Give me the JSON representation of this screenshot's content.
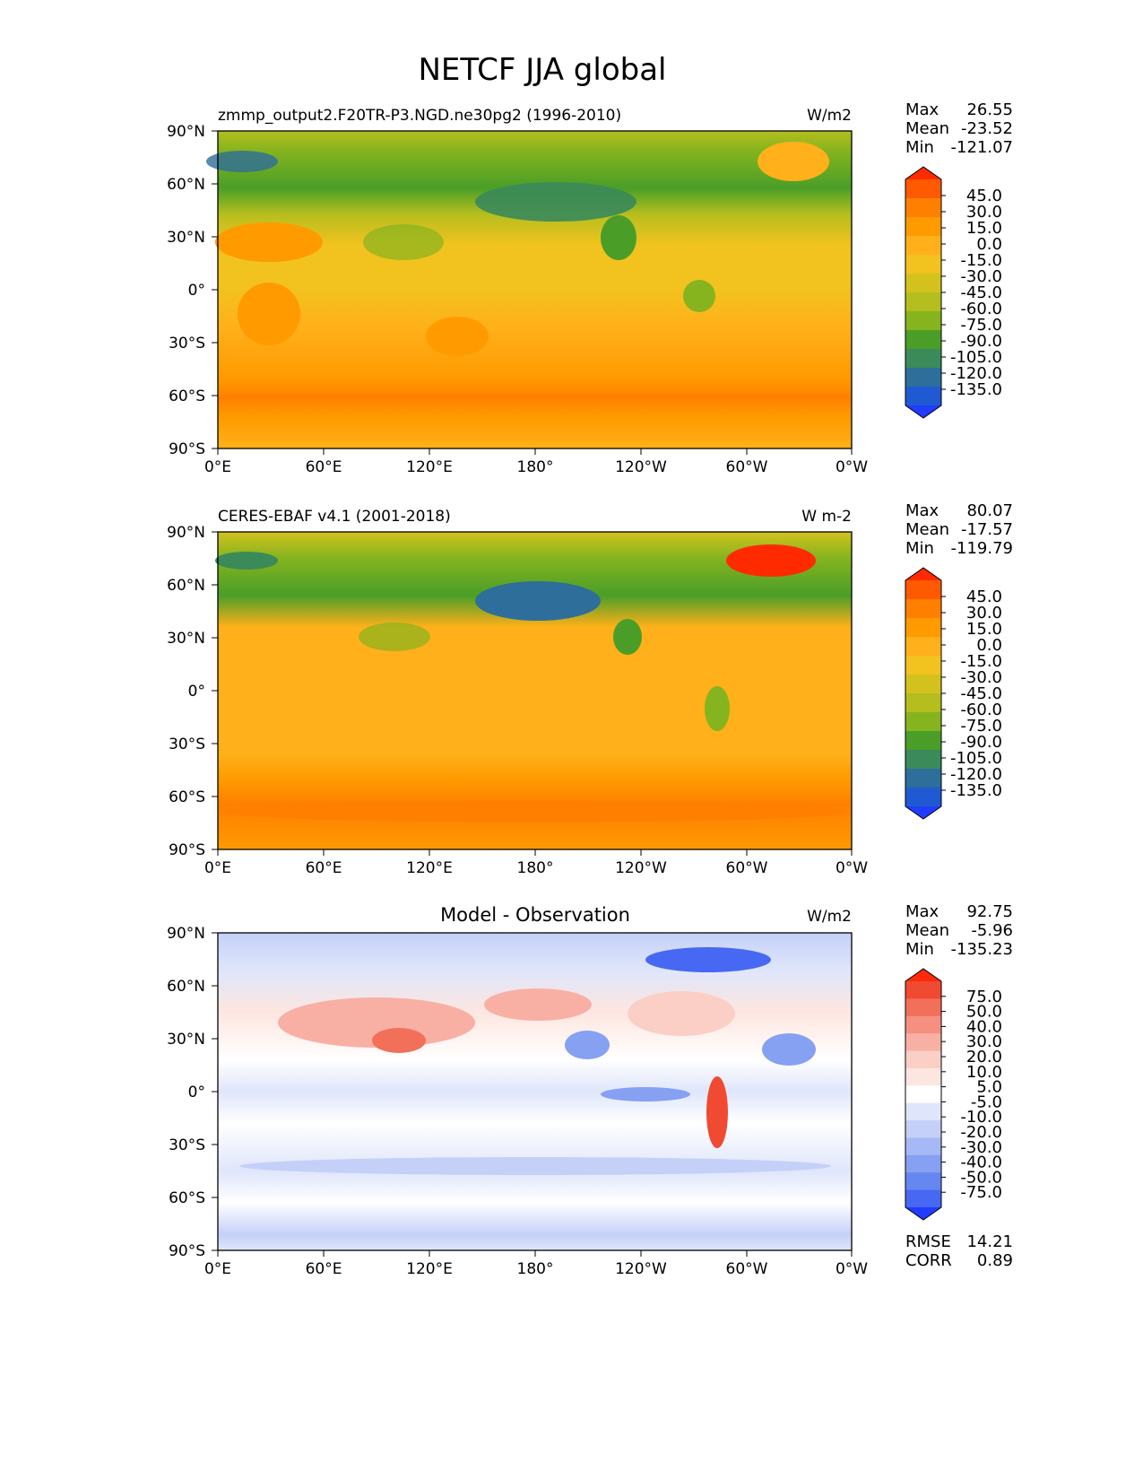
{
  "title": "NETCF JJA global",
  "lat_ticks": [
    "90°N",
    "60°N",
    "30°N",
    "0°",
    "30°S",
    "60°S",
    "90°S"
  ],
  "lon_ticks": [
    "0°E",
    "60°E",
    "120°E",
    "180°",
    "120°W",
    "60°W",
    "0°W"
  ],
  "panels": [
    {
      "id": "model",
      "left_title": "zmmp_output2.F20TR-P3.NGD.ne30pg2 (1996-2010)",
      "center_title": "",
      "units": "W/m2",
      "stats": [
        {
          "label": "Max",
          "value": "26.55"
        },
        {
          "label": "Mean",
          "value": "-23.52"
        },
        {
          "label": "Min",
          "value": "-121.07"
        }
      ],
      "colorbar": {
        "levels": [
          "45.0",
          "30.0",
          "15.0",
          "0.0",
          "-15.0",
          "-30.0",
          "-45.0",
          "-60.0",
          "-75.0",
          "-90.0",
          "-105.0",
          "-120.0",
          "-135.0"
        ],
        "colors": [
          "#ff2a00",
          "#ff5a00",
          "#ff8000",
          "#ff9a00",
          "#ffb01a",
          "#f2c21e",
          "#d3c21e",
          "#b4be1e",
          "#86b41e",
          "#4a9e28",
          "#3a8a5a",
          "#2e6e9a",
          "#1f5ad2",
          "#1f3cff"
        ]
      }
    },
    {
      "id": "obs",
      "left_title": "CERES-EBAF v4.1 (2001-2018)",
      "center_title": "",
      "units": "W m-2",
      "stats": [
        {
          "label": "Max",
          "value": "80.07"
        },
        {
          "label": "Mean",
          "value": "-17.57"
        },
        {
          "label": "Min",
          "value": "-119.79"
        }
      ],
      "colorbar": {
        "levels": [
          "45.0",
          "30.0",
          "15.0",
          "0.0",
          "-15.0",
          "-30.0",
          "-45.0",
          "-60.0",
          "-75.0",
          "-90.0",
          "-105.0",
          "-120.0",
          "-135.0"
        ],
        "colors": [
          "#ff2a00",
          "#ff5a00",
          "#ff8000",
          "#ff9a00",
          "#ffb01a",
          "#f2c21e",
          "#d3c21e",
          "#b4be1e",
          "#86b41e",
          "#4a9e28",
          "#3a8a5a",
          "#2e6e9a",
          "#1f5ad2",
          "#1f3cff"
        ]
      }
    },
    {
      "id": "diff",
      "left_title": "",
      "center_title": "Model - Observation",
      "units": "W/m2",
      "stats": [
        {
          "label": "Max",
          "value": "92.75"
        },
        {
          "label": "Mean",
          "value": "-5.96"
        },
        {
          "label": "Min",
          "value": "-135.23"
        }
      ],
      "extra_stats": [
        {
          "label": "RMSE",
          "value": "14.21"
        },
        {
          "label": "CORR",
          "value": "0.89"
        }
      ],
      "colorbar": {
        "levels": [
          "75.0",
          "50.0",
          "40.0",
          "30.0",
          "20.0",
          "10.0",
          "5.0",
          "-5.0",
          "-10.0",
          "-20.0",
          "-30.0",
          "-40.0",
          "-50.0",
          "-75.0"
        ],
        "colors": [
          "#ff2a0a",
          "#f04a32",
          "#f2705a",
          "#f59080",
          "#f8b0a4",
          "#fbcfc6",
          "#fde6e0",
          "#ffffff",
          "#dfe6fb",
          "#c4d0f8",
          "#a6b8f5",
          "#86a0f2",
          "#6686f0",
          "#4668f2",
          "#1f3cff"
        ]
      }
    }
  ]
}
